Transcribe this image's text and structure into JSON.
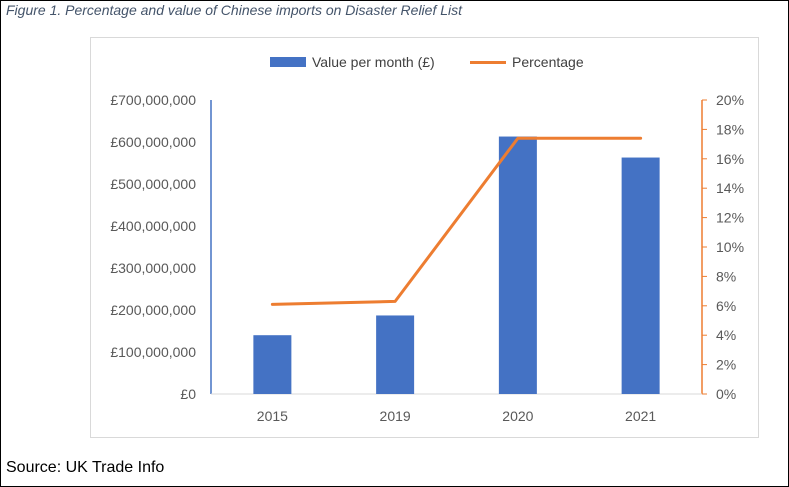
{
  "caption": "Figure 1. Percentage and value of Chinese imports on Disaster Relief List",
  "source": "Source: UK Trade Info",
  "colors": {
    "bar": "#4472c4",
    "line": "#ed7d31",
    "grid": "#d9d9d9",
    "text": "#595959"
  },
  "chart_data": {
    "type": "bar",
    "title": "",
    "categories": [
      "2015",
      "2019",
      "2020",
      "2021"
    ],
    "series": [
      {
        "name": "Value per month (£)",
        "type": "bar",
        "axis": "left",
        "values": [
          140000000,
          187000000,
          613000000,
          563000000
        ]
      },
      {
        "name": "Percentage",
        "type": "line",
        "axis": "right",
        "values": [
          6.1,
          6.3,
          17.4,
          17.4
        ]
      }
    ],
    "y_left": {
      "min": 0,
      "max": 700000000,
      "ticks": [
        0,
        100000000,
        200000000,
        300000000,
        400000000,
        500000000,
        600000000,
        700000000
      ],
      "tick_labels": [
        "£0",
        "£100,000,000",
        "£200,000,000",
        "£300,000,000",
        "£400,000,000",
        "£500,000,000",
        "£600,000,000",
        "£700,000,000"
      ]
    },
    "y_right": {
      "min": 0,
      "max": 20,
      "ticks": [
        0,
        2,
        4,
        6,
        8,
        10,
        12,
        14,
        16,
        18,
        20
      ],
      "tick_labels": [
        "0%",
        "2%",
        "4%",
        "6%",
        "8%",
        "10%",
        "12%",
        "14%",
        "16%",
        "18%",
        "20%"
      ]
    },
    "legend": "top-center",
    "grid": false
  }
}
